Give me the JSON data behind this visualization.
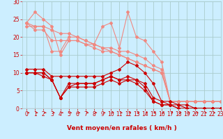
{
  "xlabel": "Vent moyen/en rafales ( km/h )",
  "xlim": [
    -0.5,
    23
  ],
  "ylim": [
    0,
    30
  ],
  "xticks": [
    0,
    1,
    2,
    3,
    4,
    5,
    6,
    7,
    8,
    9,
    10,
    11,
    12,
    13,
    14,
    15,
    16,
    17,
    18,
    19,
    20,
    21,
    22,
    23
  ],
  "yticks": [
    0,
    5,
    10,
    15,
    20,
    25,
    30
  ],
  "bg_color": "#cceeff",
  "grid_color": "#aacccc",
  "lines_salmon": [
    {
      "x": [
        0,
        1,
        2,
        3,
        4,
        5,
        6,
        7,
        8,
        9,
        10,
        11,
        12,
        13,
        14,
        15,
        16,
        17,
        18,
        19,
        20,
        21,
        22,
        23
      ],
      "y": [
        24,
        27,
        25,
        23,
        15,
        19,
        19,
        18,
        18,
        23,
        24,
        17,
        27,
        20,
        19,
        16,
        13,
        2,
        2,
        2,
        2,
        2,
        2,
        2
      ]
    },
    {
      "x": [
        0,
        1,
        2,
        3,
        4,
        5,
        6,
        7,
        8,
        9,
        10,
        11,
        12,
        13,
        14,
        15,
        16,
        17,
        18,
        19,
        20,
        21,
        22,
        23
      ],
      "y": [
        23,
        23,
        23,
        16,
        16,
        20,
        20,
        19,
        18,
        17,
        17,
        16,
        16,
        15,
        14,
        12,
        11,
        2,
        2,
        2,
        2,
        2,
        2,
        2
      ]
    },
    {
      "x": [
        0,
        1,
        2,
        3,
        4,
        5,
        6,
        7,
        8,
        9,
        10,
        11,
        12,
        13,
        14,
        15,
        16,
        17,
        18,
        19,
        20,
        21,
        22,
        23
      ],
      "y": [
        24,
        22,
        22,
        19,
        19,
        19,
        19,
        18,
        17,
        16,
        16,
        15,
        14,
        13,
        12,
        11,
        10,
        2,
        2,
        2,
        2,
        2,
        2,
        2
      ]
    },
    {
      "x": [
        0,
        1,
        2,
        3,
        4,
        5,
        6,
        7,
        8,
        9,
        10,
        11,
        12,
        13,
        14,
        15,
        16,
        17,
        18,
        19,
        20,
        21,
        22,
        23
      ],
      "y": [
        24,
        23,
        23,
        22,
        21,
        21,
        20,
        19,
        18,
        17,
        16,
        15,
        14,
        13,
        12,
        11,
        10,
        2,
        2,
        2,
        2,
        2,
        2,
        2
      ]
    }
  ],
  "lines_red": [
    {
      "x": [
        0,
        1,
        2,
        3,
        4,
        5,
        6,
        7,
        8,
        9,
        10,
        11,
        12,
        13,
        14,
        15,
        16,
        17,
        18,
        19,
        20,
        21,
        22,
        23
      ],
      "y": [
        11,
        11,
        11,
        9,
        9,
        9,
        9,
        9,
        9,
        9,
        10,
        11,
        13,
        12,
        10,
        7,
        2,
        2,
        1,
        1,
        0,
        0,
        0,
        0
      ]
    },
    {
      "x": [
        0,
        1,
        2,
        3,
        4,
        5,
        6,
        7,
        8,
        9,
        10,
        11,
        12,
        13,
        14,
        15,
        16,
        17,
        18,
        19,
        20,
        21,
        22,
        23
      ],
      "y": [
        10,
        10,
        10,
        8,
        3,
        7,
        7,
        7,
        7,
        8,
        9,
        8,
        9,
        8,
        7,
        3,
        2,
        1,
        1,
        0,
        0,
        0,
        0,
        0
      ]
    },
    {
      "x": [
        0,
        1,
        2,
        3,
        4,
        5,
        6,
        7,
        8,
        9,
        10,
        11,
        12,
        13,
        14,
        15,
        16,
        17,
        18,
        19,
        20,
        21,
        22,
        23
      ],
      "y": [
        10,
        10,
        10,
        8,
        3,
        6,
        7,
        7,
        7,
        8,
        9,
        8,
        8,
        8,
        6,
        2,
        1,
        1,
        0,
        0,
        0,
        0,
        0,
        0
      ]
    },
    {
      "x": [
        0,
        1,
        2,
        3,
        4,
        5,
        6,
        7,
        8,
        9,
        10,
        11,
        12,
        13,
        14,
        15,
        16,
        17,
        18,
        19,
        20,
        21,
        22,
        23
      ],
      "y": [
        10,
        10,
        9,
        8,
        3,
        6,
        6,
        6,
        6,
        7,
        8,
        7,
        8,
        7,
        5,
        2,
        1,
        1,
        0,
        0,
        0,
        0,
        0,
        0
      ]
    }
  ],
  "salmon_color": "#f08880",
  "red_color": "#cc0000",
  "marker_size": 2.0,
  "line_width": 0.8,
  "tick_fontsize": 5.5,
  "xlabel_fontsize": 6.5
}
